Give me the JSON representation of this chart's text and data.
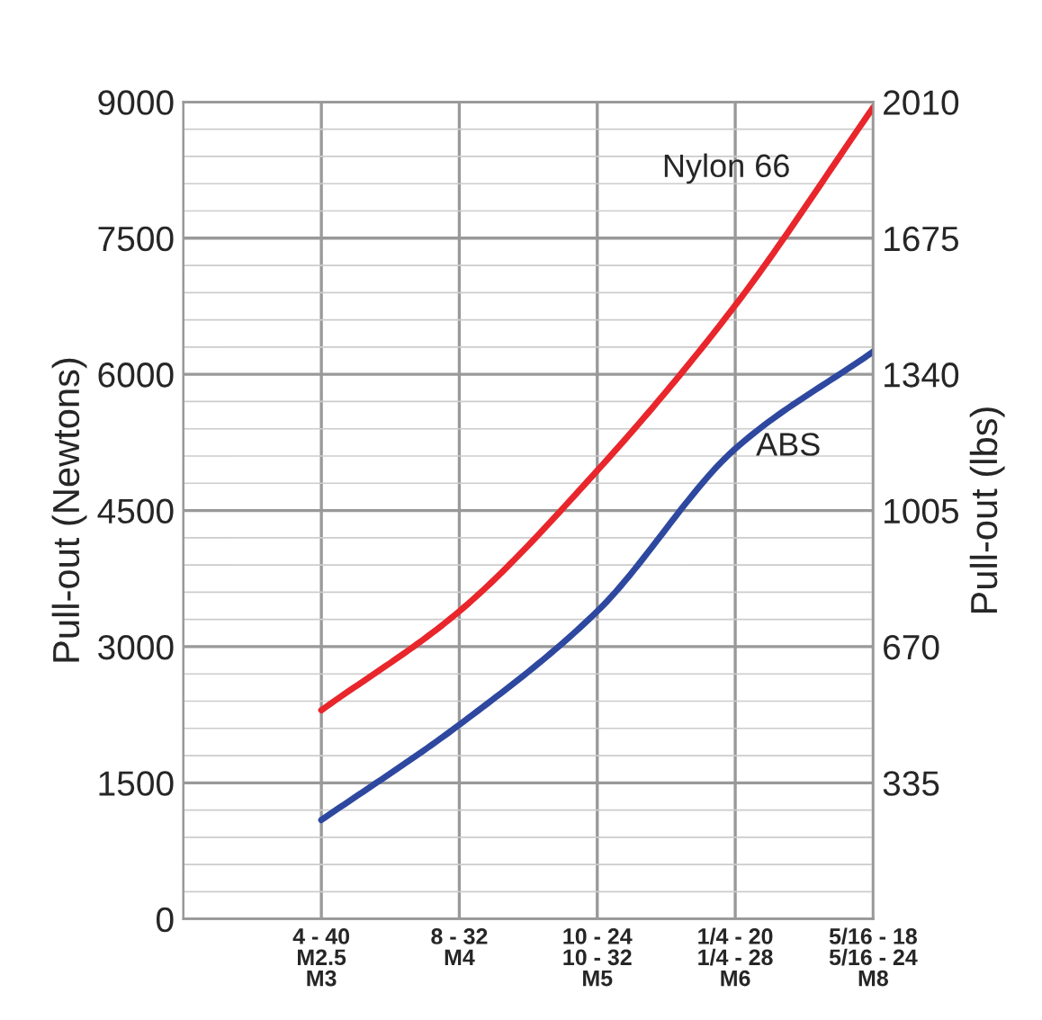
{
  "chart_data": {
    "type": "line",
    "categories": [
      "4 - 40\nM2.5\nM3",
      "8 - 32\nM4",
      "10 - 24\n10 - 32\nM5",
      "1/4 - 20\n1/4 - 28\nM6",
      "5/16 - 18\n5/16 - 24\nM8"
    ],
    "series": [
      {
        "name": "Nylon 66",
        "color": "#e8262b",
        "values": [
          2300,
          3390,
          4940,
          6760,
          8940
        ]
      },
      {
        "name": "ABS",
        "color": "#2e48a0",
        "values": [
          1090,
          2140,
          3390,
          5180,
          6250
        ]
      }
    ],
    "ylabel": "Pull-out (Newtons)",
    "y2label": "Pull-out (lbs)",
    "ylim": [
      0,
      9000
    ],
    "yticks": [
      0,
      1500,
      3000,
      4500,
      6000,
      7500,
      9000
    ],
    "y2lim": [
      0,
      2010
    ],
    "y2ticks": [
      335,
      670,
      1005,
      1340,
      1675,
      2010
    ],
    "grid": true,
    "legend": false
  }
}
